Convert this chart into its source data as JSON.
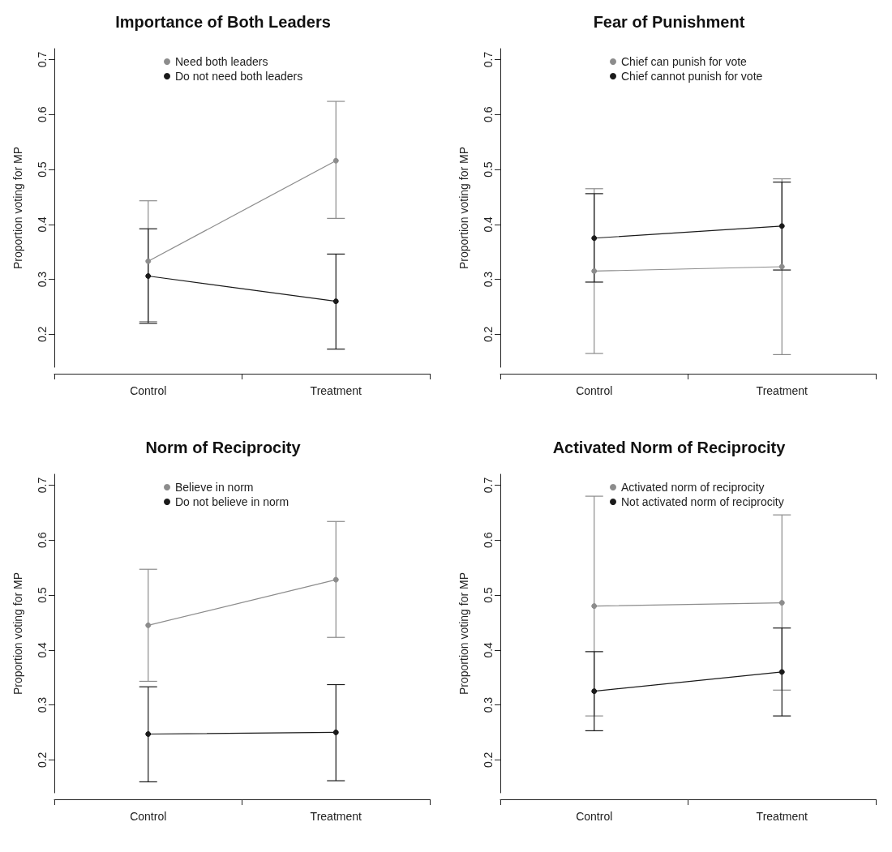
{
  "chart_data": [
    {
      "type": "line",
      "title": "Importance of Both Leaders",
      "ylabel": "Proportion voting for MP",
      "categories": [
        "Control",
        "Treatment"
      ],
      "ylim": [
        0.14,
        0.72
      ],
      "yticks": [
        0.2,
        0.3,
        0.4,
        0.5,
        0.6,
        0.7
      ],
      "grid": false,
      "legend": "top",
      "marker": "circle",
      "line_style": "solid",
      "series": [
        {
          "name": "Need both leaders",
          "color": "#8c8c8c",
          "values": [
            0.333,
            0.516
          ],
          "errors": [
            [
              0.223,
              0.443
            ],
            [
              0.411,
              0.624
            ]
          ]
        },
        {
          "name": "Do not need both leaders",
          "color": "#1a1a1a",
          "values": [
            0.306,
            0.26
          ],
          "errors": [
            [
              0.22,
              0.392
            ],
            [
              0.173,
              0.346
            ]
          ]
        }
      ]
    },
    {
      "type": "line",
      "title": "Fear of Punishment",
      "ylabel": "Proportion voting for MP",
      "categories": [
        "Control",
        "Treatment"
      ],
      "ylim": [
        0.14,
        0.72
      ],
      "yticks": [
        0.2,
        0.3,
        0.4,
        0.5,
        0.6,
        0.7
      ],
      "grid": false,
      "legend": "top",
      "marker": "circle",
      "line_style": "solid",
      "series": [
        {
          "name": "Chief can punish for vote",
          "color": "#8c8c8c",
          "values": [
            0.315,
            0.323
          ],
          "errors": [
            [
              0.165,
              0.465
            ],
            [
              0.163,
              0.483
            ]
          ]
        },
        {
          "name": "Chief cannot punish for vote",
          "color": "#1a1a1a",
          "values": [
            0.375,
            0.397
          ],
          "errors": [
            [
              0.295,
              0.456
            ],
            [
              0.317,
              0.477
            ]
          ]
        }
      ]
    },
    {
      "type": "line",
      "title": "Norm of Reciprocity",
      "ylabel": "Proportion voting for MP",
      "categories": [
        "Control",
        "Treatment"
      ],
      "ylim": [
        0.14,
        0.72
      ],
      "yticks": [
        0.2,
        0.3,
        0.4,
        0.5,
        0.6,
        0.7
      ],
      "grid": false,
      "legend": "top",
      "marker": "circle",
      "line_style": "solid",
      "series": [
        {
          "name": "Believe in norm",
          "color": "#8c8c8c",
          "values": [
            0.445,
            0.528
          ],
          "errors": [
            [
              0.343,
              0.547
            ],
            [
              0.423,
              0.634
            ]
          ]
        },
        {
          "name": "Do not believe in norm",
          "color": "#1a1a1a",
          "values": [
            0.247,
            0.25
          ],
          "errors": [
            [
              0.16,
              0.333
            ],
            [
              0.162,
              0.337
            ]
          ]
        }
      ]
    },
    {
      "type": "line",
      "title": "Activated Norm of Reciprocity",
      "ylabel": "Proportion voting for MP",
      "categories": [
        "Control",
        "Treatment"
      ],
      "ylim": [
        0.14,
        0.72
      ],
      "yticks": [
        0.2,
        0.3,
        0.4,
        0.5,
        0.6,
        0.7
      ],
      "grid": false,
      "legend": "top",
      "marker": "circle",
      "line_style": "solid",
      "series": [
        {
          "name": "Activated norm of reciprocity",
          "color": "#8c8c8c",
          "values": [
            0.48,
            0.486
          ],
          "errors": [
            [
              0.28,
              0.68
            ],
            [
              0.327,
              0.646
            ]
          ]
        },
        {
          "name": "Not activated norm of reciprocity",
          "color": "#1a1a1a",
          "values": [
            0.325,
            0.36
          ],
          "errors": [
            [
              0.253,
              0.397
            ],
            [
              0.28,
              0.44
            ]
          ]
        }
      ]
    }
  ]
}
